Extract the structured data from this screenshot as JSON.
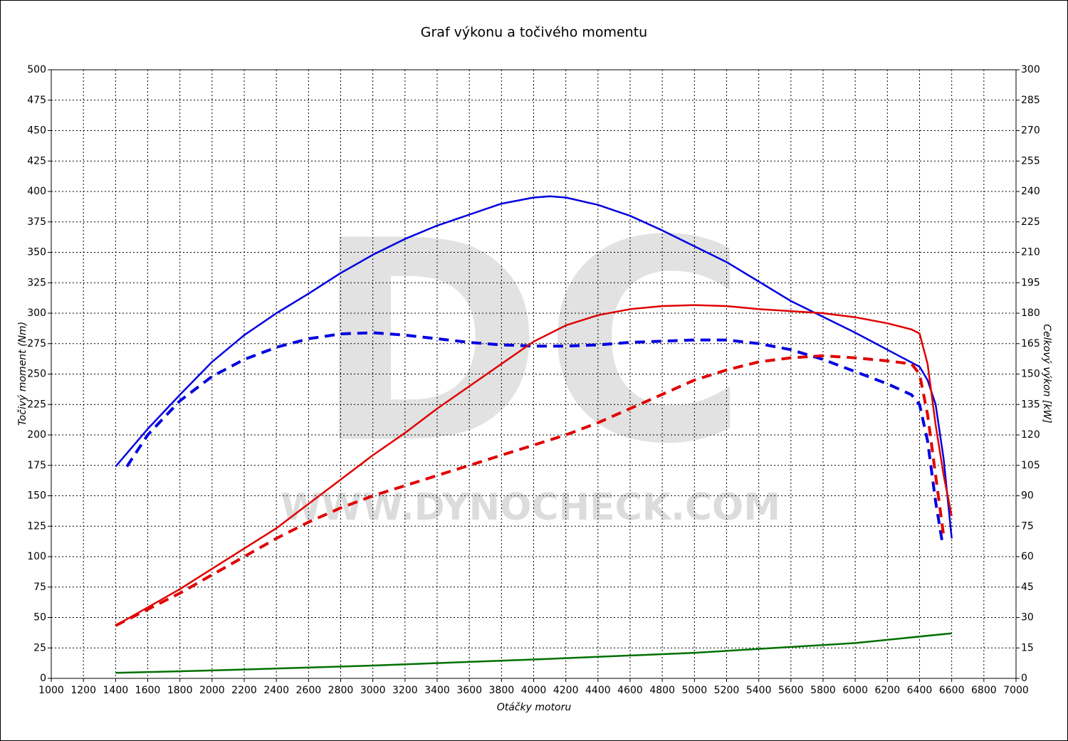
{
  "chart_data": {
    "type": "line",
    "title": "Graf výkonu a točivého momentu",
    "xlabel": "Otáčky motoru",
    "ylabel": "Točivý moment (Nm)",
    "y2label": "Celkový výkon [kW]",
    "watermark": [
      "DC",
      "WWW.DYNOCHECK.COM"
    ],
    "xlim": [
      1000,
      7000
    ],
    "ylim": [
      0,
      500
    ],
    "y2lim": [
      0,
      300
    ],
    "xticks": [
      1000,
      1200,
      1400,
      1600,
      1800,
      2000,
      2200,
      2400,
      2600,
      2800,
      3000,
      3200,
      3400,
      3600,
      3800,
      4000,
      4200,
      4400,
      4600,
      4800,
      5000,
      5200,
      5400,
      5600,
      5800,
      6000,
      6200,
      6400,
      6600,
      6800,
      7000
    ],
    "yticks": [
      0,
      25,
      50,
      75,
      100,
      125,
      150,
      175,
      200,
      225,
      250,
      275,
      300,
      325,
      350,
      375,
      400,
      425,
      450,
      475,
      500
    ],
    "y2ticks": [
      0,
      15,
      30,
      45,
      60,
      75,
      90,
      105,
      120,
      135,
      150,
      165,
      180,
      195,
      210,
      225,
      240,
      255,
      270,
      285,
      300
    ],
    "grid": true,
    "series": [
      {
        "color": "#0000e0",
        "dash": false,
        "axis": "y",
        "x": [
          1400,
          1600,
          1800,
          2000,
          2200,
          2400,
          2600,
          2800,
          3000,
          3200,
          3400,
          3600,
          3800,
          4000,
          4100,
          4200,
          4400,
          4600,
          4800,
          5000,
          5200,
          5400,
          5600,
          5800,
          6000,
          6200,
          6400,
          6450,
          6500,
          6550,
          6600
        ],
        "values": [
          174,
          205,
          233,
          260,
          282,
          300,
          316,
          333,
          348,
          361,
          372,
          381,
          390,
          395,
          396,
          395,
          389,
          380,
          368,
          355,
          342,
          326,
          310,
          297,
          284,
          270,
          256,
          245,
          225,
          180,
          115
        ]
      },
      {
        "color": "#0000e0",
        "dash": true,
        "axis": "y",
        "x": [
          1470,
          1600,
          1800,
          2000,
          2200,
          2400,
          2600,
          2800,
          3000,
          3200,
          3400,
          3600,
          3800,
          4000,
          4200,
          4400,
          4600,
          4800,
          5000,
          5200,
          5400,
          5600,
          5800,
          6000,
          6200,
          6350,
          6400,
          6450,
          6500,
          6540
        ],
        "values": [
          174,
          200,
          228,
          248,
          262,
          272,
          279,
          283,
          284,
          282,
          279,
          276,
          274,
          273,
          273,
          274,
          276,
          277,
          278,
          278,
          275,
          270,
          262,
          252,
          242,
          233,
          225,
          195,
          145,
          113
        ]
      },
      {
        "color": "#e00000",
        "dash": false,
        "axis": "y2",
        "x": [
          1400,
          1600,
          1800,
          2000,
          2200,
          2400,
          2600,
          2800,
          3000,
          3200,
          3400,
          3600,
          3800,
          4000,
          4200,
          4400,
          4600,
          4800,
          5000,
          5200,
          5400,
          5600,
          5800,
          6000,
          6200,
          6350,
          6400,
          6450,
          6500,
          6550,
          6600
        ],
        "values": [
          26,
          35,
          44,
          54,
          64,
          74,
          86,
          98,
          110,
          121,
          133,
          144,
          155,
          166,
          174,
          179,
          182,
          183.5,
          184,
          183.5,
          182,
          181,
          180,
          178,
          175,
          172,
          170,
          155,
          125,
          100,
          80
        ]
      },
      {
        "color": "#e00000",
        "dash": true,
        "axis": "y2",
        "x": [
          1400,
          1600,
          1800,
          2000,
          2200,
          2400,
          2600,
          2800,
          3000,
          3200,
          3400,
          3600,
          3800,
          4000,
          4200,
          4400,
          4600,
          4800,
          5000,
          5200,
          5400,
          5600,
          5800,
          6000,
          6200,
          6350,
          6400,
          6450,
          6500,
          6550
        ],
        "values": [
          26,
          34,
          42,
          51,
          60,
          69,
          77,
          84,
          90,
          95,
          100,
          105,
          110,
          115,
          120,
          126,
          133,
          140,
          147,
          152,
          156,
          158,
          159,
          158,
          156.5,
          155,
          150,
          130,
          100,
          70
        ]
      },
      {
        "color": "#007000",
        "dash": false,
        "axis": "y",
        "x": [
          1400,
          2000,
          3000,
          4000,
          5000,
          5500,
          6000,
          6600
        ],
        "values": [
          4.5,
          6.5,
          10.5,
          15.5,
          21,
          25,
          29,
          37
        ]
      }
    ]
  }
}
